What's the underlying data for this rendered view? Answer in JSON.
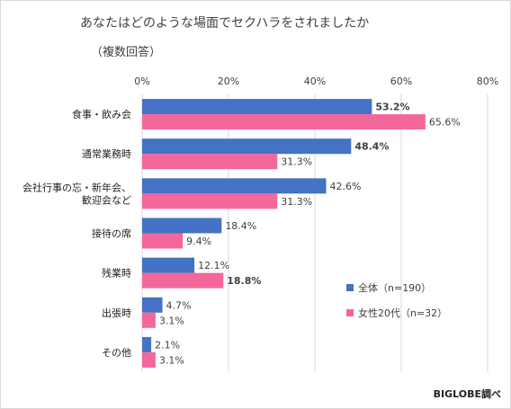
{
  "title": "あなたはどのような場面でセクハラをされましたか",
  "subtitle": "（複数回答）",
  "source": "BIGLOBE調べ",
  "colors": {
    "all": "#4472c4",
    "female20s": "#f4679a",
    "grid": "#d9d9d9"
  },
  "chart_data": {
    "type": "bar",
    "orientation": "horizontal",
    "title": "あなたはどのような場面でセクハラをされましたか",
    "subtitle": "（複数回答）",
    "xlim": [
      0,
      80
    ],
    "ticks": [
      "0%",
      "20%",
      "40%",
      "60%",
      "80%"
    ],
    "grid": true,
    "legend_position": "bottom-right",
    "categories": [
      [
        "食事・飲み会"
      ],
      [
        "通常業務時"
      ],
      [
        "会社行事の忘・新年会、",
        "歓迎会など"
      ],
      [
        "接待の席"
      ],
      [
        "残業時"
      ],
      [
        "出張時"
      ],
      [
        "その他"
      ]
    ],
    "series": [
      {
        "name": "全体（n=190）",
        "values": [
          53.2,
          48.4,
          42.6,
          18.4,
          12.1,
          4.7,
          2.1
        ],
        "labels": [
          "53.2%",
          "48.4%",
          "42.6%",
          "18.4%",
          "12.1%",
          "4.7%",
          "2.1%"
        ],
        "bold": [
          true,
          true,
          false,
          false,
          false,
          false,
          false
        ]
      },
      {
        "name": "女性20代（n=32）",
        "values": [
          65.6,
          31.3,
          31.3,
          9.4,
          18.8,
          3.1,
          3.1
        ],
        "labels": [
          "65.6%",
          "31.3%",
          "31.3%",
          "9.4%",
          "18.8%",
          "3.1%",
          "3.1%"
        ],
        "bold": [
          false,
          false,
          false,
          false,
          true,
          false,
          false
        ]
      }
    ]
  }
}
